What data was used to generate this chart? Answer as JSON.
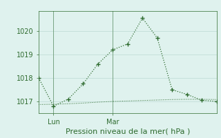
{
  "main_x": [
    0,
    1,
    2,
    3,
    4,
    5,
    6,
    7,
    8,
    9,
    10,
    11,
    12
  ],
  "main_y": [
    1018.0,
    1016.8,
    1017.1,
    1017.75,
    1018.6,
    1019.2,
    1019.45,
    1020.55,
    1019.7,
    1017.5,
    1017.3,
    1017.05,
    1017.0
  ],
  "flat_x": [
    0,
    1,
    2,
    3,
    4,
    5,
    6,
    7,
    8,
    9,
    10,
    11,
    12
  ],
  "flat_y": [
    1016.87,
    1016.88,
    1016.9,
    1016.93,
    1016.97,
    1017.0,
    1017.02,
    1017.04,
    1017.06,
    1017.08,
    1017.09,
    1017.09,
    1017.08
  ],
  "line_color": "#2d6a2d",
  "bg_color": "#dff2ee",
  "grid_color": "#c2ddd8",
  "xlabel": "Pression niveau de la mer( hPa )",
  "yticks": [
    1017,
    1018,
    1019,
    1020
  ],
  "ylim": [
    1016.5,
    1020.85
  ],
  "xlim": [
    0,
    12
  ],
  "lun_x": 1,
  "mar_x": 5,
  "xlabel_fontsize": 8,
  "tick_fontsize": 7
}
